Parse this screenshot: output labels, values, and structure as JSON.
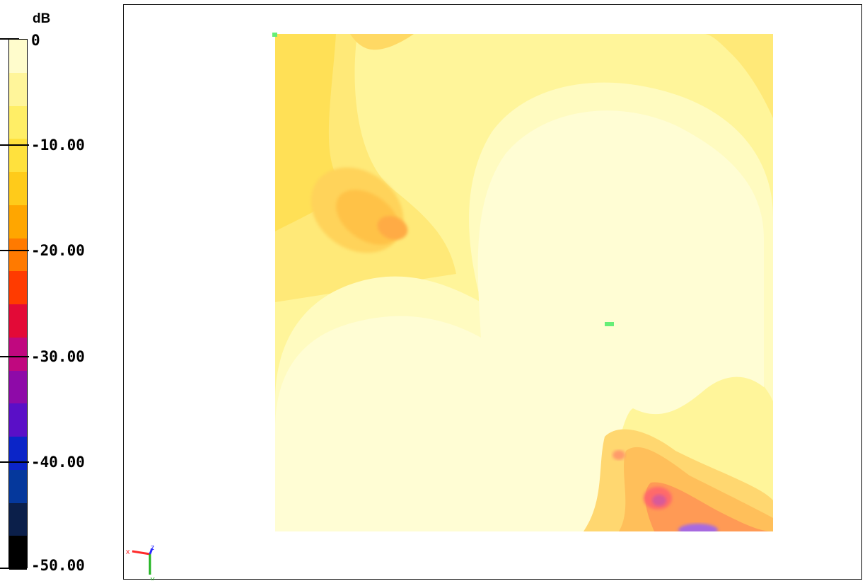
{
  "chart_data": {
    "type": "heatmap",
    "title": "",
    "colorbar": {
      "unit": "dB",
      "range": [
        -50,
        0
      ],
      "tick_labels": [
        "0",
        "-10.00",
        "-20.00",
        "-30.00",
        "-40.00",
        "-50.00"
      ],
      "tick_values": [
        0,
        -10,
        -20,
        -30,
        -40,
        -50
      ],
      "colors": [
        "#fffccc",
        "#fff59a",
        "#ffee66",
        "#ffe13d",
        "#ffcb1a",
        "#ffa600",
        "#ff7a00",
        "#ff3b00",
        "#e30a37",
        "#c0087f",
        "#8e0aa8",
        "#5a0fc7",
        "#0b25c8",
        "#05389c",
        "#0b1f4a",
        "#000000"
      ]
    },
    "field": {
      "description_levels_dB": [
        0,
        -3,
        -6,
        -10,
        -13,
        -16,
        -20,
        -23,
        -26,
        -30,
        -33,
        -36,
        -40,
        -43,
        -46,
        -50
      ],
      "max_level_region": "center",
      "min_level_region": "bottom-right"
    },
    "markers": [
      {
        "name": "probe-top-left",
        "color": "#66ee77"
      },
      {
        "name": "probe-center",
        "color": "#66ee77"
      }
    ],
    "triad": {
      "x_label": "x",
      "y_label": "y",
      "z_label": "z"
    }
  }
}
